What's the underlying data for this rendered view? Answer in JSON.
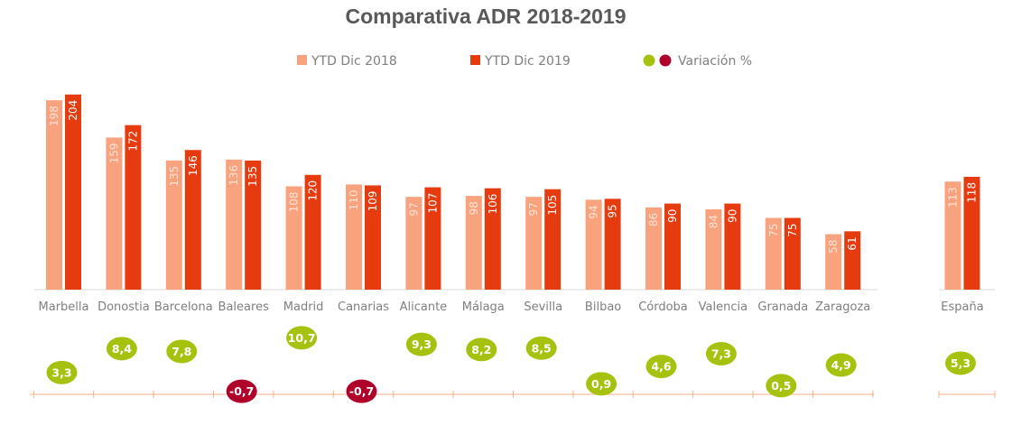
{
  "chart_data": {
    "type": "bar",
    "title": "Comparativa ADR 2018-2019",
    "categories": [
      "Marbella",
      "Donostia",
      "Barcelona",
      "Baleares",
      "Madrid",
      "Canarias",
      "Alicante",
      "Málaga",
      "Sevilla",
      "Bilbao",
      "Córdoba",
      "Valencia",
      "Granada",
      "Zaragoza"
    ],
    "series": [
      {
        "name": "YTD  Dic 2018",
        "color": "#f9a27e",
        "values": [
          198,
          159,
          135,
          136,
          108,
          110,
          97,
          98,
          97,
          94,
          86,
          84,
          75,
          58
        ]
      },
      {
        "name": "YTD  Dic 2019",
        "color": "#e63a0f",
        "values": [
          204,
          172,
          146,
          135,
          120,
          109,
          107,
          106,
          105,
          95,
          90,
          90,
          75,
          61
        ]
      }
    ],
    "variation": {
      "name": "Variación %",
      "values": [
        "3,3",
        "8,4",
        "7,8",
        "-0,7",
        "10,7",
        "-0,7",
        "9,3",
        "8,2",
        "8,5",
        "0,9",
        "4,6",
        "7,3",
        "0,5",
        "4,9"
      ],
      "numeric": [
        3.3,
        8.4,
        7.8,
        -0.7,
        10.7,
        -0.7,
        9.3,
        8.2,
        8.5,
        0.9,
        4.6,
        7.3,
        0.5,
        4.9
      ],
      "positive_color": "#a6c20f",
      "negative_color": "#b0002a"
    },
    "total": {
      "category": "España",
      "values": [
        113,
        118
      ],
      "variation": "5,3",
      "variation_numeric": 5.3
    },
    "legend_position": "top-center",
    "grid": false
  }
}
